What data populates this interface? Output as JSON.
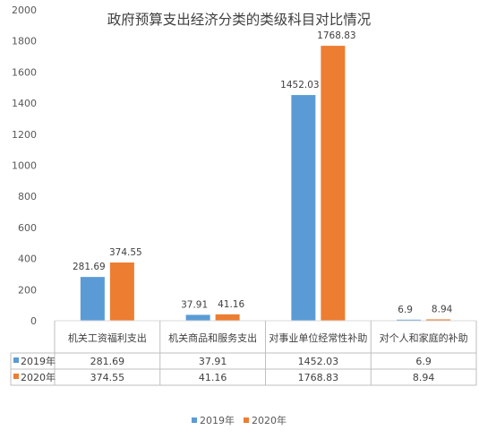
{
  "chart_data": {
    "type": "bar",
    "title": "政府预算支出经济分类的类级科目对比情况",
    "categories": [
      "机关工资福利支出",
      "机关商品和服务支出",
      "对事业单位经常性补助",
      "对个人和家庭的补助"
    ],
    "series": [
      {
        "name": "2019年",
        "values": [
          281.69,
          37.91,
          1452.03,
          6.9
        ],
        "color": "#5b9bd5"
      },
      {
        "name": "2020年",
        "values": [
          374.55,
          41.16,
          1768.83,
          8.94
        ],
        "color": "#ed7d31"
      }
    ],
    "y_ticks": [
      "0",
      "200",
      "400",
      "600",
      "800",
      "1000",
      "1200",
      "1400",
      "1600",
      "1800",
      "2000"
    ],
    "ylim": [
      0,
      2000
    ],
    "grid": false,
    "legend_position": "bottom",
    "data_table": true
  }
}
